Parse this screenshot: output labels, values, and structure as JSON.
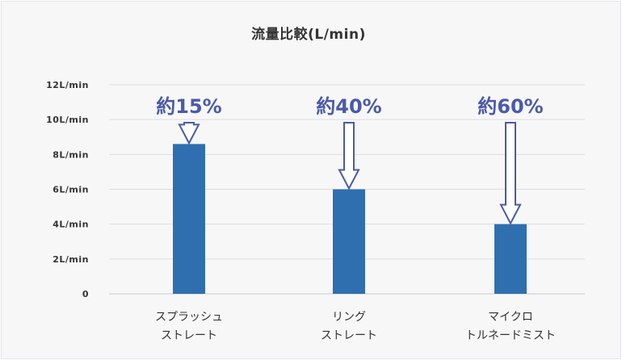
{
  "chart_data": {
    "type": "bar",
    "title": "流量比較(L/min)",
    "categories": [
      [
        "スプラッシュ",
        "ストレート"
      ],
      [
        "リング",
        "ストレート"
      ],
      [
        "マイクロ",
        "トルネードミスト"
      ]
    ],
    "values": [
      8.6,
      6.0,
      4.0
    ],
    "ylim": [
      0,
      12
    ],
    "yticks": [
      "0",
      "2L/min",
      "4L/min",
      "6L/min",
      "8L/min",
      "10L/min",
      "12L/min"
    ],
    "annotations": [
      "約15%",
      "約40%",
      "約60%"
    ],
    "grid": true,
    "bar_color": "#2f6fb0",
    "arrow_color": "#4b5aa8"
  }
}
